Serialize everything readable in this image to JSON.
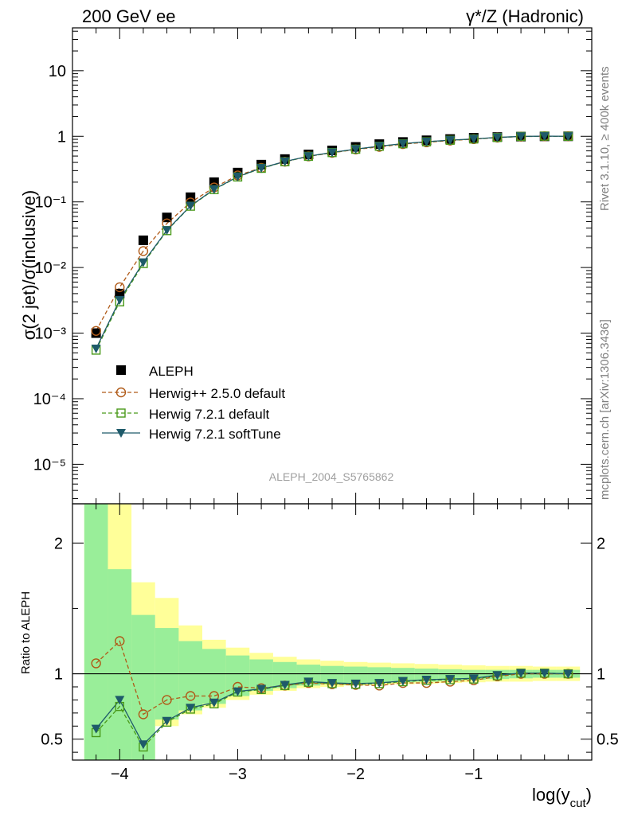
{
  "header": {
    "left": "200 GeV ee",
    "right": "γ*/Z (Hadronic)"
  },
  "side_text": {
    "rivet": "Rivet 3.1.10, ≥ 400k events",
    "source": "mcplots.cern.ch [arXiv:1306.3436]"
  },
  "chart_data": [
    {
      "type": "scatter",
      "panel": "main",
      "title": "ALEPH_2004_S5765862",
      "ylabel": "σ(2 jet)/σ(inclusive)",
      "xlabel": "",
      "yscale": "log",
      "xlim": [
        -4.4,
        -0.0
      ],
      "ylim": [
        2.5e-06,
        45
      ],
      "y_tick_labels": [
        "10⁻⁵",
        "10⁻⁴",
        "10⁻³",
        "10⁻²",
        "10⁻¹",
        "1",
        "10"
      ],
      "x": [
        -4.2,
        -4.0,
        -3.8,
        -3.6,
        -3.4,
        -3.2,
        -3.0,
        -2.8,
        -2.6,
        -2.4,
        -2.2,
        -2.0,
        -1.8,
        -1.6,
        -1.4,
        -1.2,
        -1.0,
        -0.8,
        -0.6,
        -0.4,
        -0.2
      ],
      "series": [
        {
          "name": "ALEPH",
          "color": "#000000",
          "marker": "filled-square",
          "line": "none",
          "values": [
            0.001,
            0.004,
            0.026,
            0.058,
            0.118,
            0.2,
            0.28,
            0.37,
            0.45,
            0.53,
            0.61,
            0.69,
            0.76,
            0.82,
            0.87,
            0.91,
            0.95,
            0.975,
            0.99,
            0.998,
            1.0
          ]
        },
        {
          "name": "Herwig++ 2.5.0 default",
          "color": "#b05a18",
          "marker": "open-circle",
          "line": "dashed",
          "values": [
            0.00108,
            0.005,
            0.0178,
            0.047,
            0.098,
            0.166,
            0.253,
            0.33,
            0.41,
            0.495,
            0.56,
            0.63,
            0.69,
            0.76,
            0.81,
            0.86,
            0.905,
            0.955,
            0.99,
            1.0,
            1.0
          ]
        },
        {
          "name": "Herwig 7.2.1 default",
          "color": "#4a9a1a",
          "marker": "open-square",
          "line": "dashed",
          "values": [
            0.00055,
            0.003,
            0.0115,
            0.0365,
            0.086,
            0.154,
            0.24,
            0.325,
            0.41,
            0.495,
            0.565,
            0.635,
            0.705,
            0.77,
            0.825,
            0.87,
            0.91,
            0.96,
            0.995,
            1.005,
            1.0
          ]
        },
        {
          "name": "Herwig 7.2.1 softTune",
          "color": "#1e5a6a",
          "marker": "filled-triangle-down",
          "line": "solid",
          "values": [
            0.00058,
            0.0032,
            0.012,
            0.037,
            0.087,
            0.156,
            0.242,
            0.328,
            0.413,
            0.497,
            0.568,
            0.637,
            0.708,
            0.773,
            0.828,
            0.873,
            0.913,
            0.962,
            0.996,
            1.005,
            1.0
          ]
        }
      ]
    },
    {
      "type": "line",
      "panel": "ratio",
      "ylabel": "Ratio to ALEPH",
      "xlabel": "log(y_cut)",
      "xlim": [
        -4.4,
        -0.0
      ],
      "ylim": [
        0.34,
        2.3
      ],
      "x_tick_labels": [
        "−4",
        "−3",
        "−2",
        "−1"
      ],
      "y_tick_labels": [
        "0.5",
        "1",
        "2"
      ],
      "x": [
        -4.2,
        -4.0,
        -3.8,
        -3.6,
        -3.4,
        -3.2,
        -3.0,
        -2.8,
        -2.6,
        -2.4,
        -2.2,
        -2.0,
        -1.8,
        -1.6,
        -1.4,
        -1.2,
        -1.0,
        -0.8,
        -0.6,
        -0.4,
        -0.2
      ],
      "bin_edges": [
        -4.3,
        -4.1,
        -3.9,
        -3.7,
        -3.5,
        -3.3,
        -3.1,
        -2.9,
        -2.7,
        -2.5,
        -2.3,
        -2.1,
        -1.9,
        -1.7,
        -1.5,
        -1.3,
        -1.1,
        -0.9,
        -0.7,
        -0.5,
        -0.3,
        -0.1
      ],
      "band_green": [
        [
          0.34,
          2.3
        ],
        [
          0.34,
          1.8
        ],
        [
          0.34,
          1.45
        ],
        [
          0.65,
          1.35
        ],
        [
          0.72,
          1.25
        ],
        [
          0.77,
          1.19
        ],
        [
          0.83,
          1.14
        ],
        [
          0.87,
          1.11
        ],
        [
          0.89,
          1.09
        ],
        [
          0.91,
          1.07
        ],
        [
          0.92,
          1.06
        ],
        [
          0.925,
          1.055
        ],
        [
          0.93,
          1.05
        ],
        [
          0.935,
          1.045
        ],
        [
          0.94,
          1.04
        ],
        [
          0.945,
          1.035
        ],
        [
          0.955,
          1.03
        ],
        [
          0.96,
          1.03
        ],
        [
          0.965,
          1.03
        ],
        [
          0.97,
          1.03
        ],
        [
          0.97,
          1.03
        ]
      ],
      "band_yellow": [
        [
          0.34,
          2.3
        ],
        [
          0.34,
          2.3
        ],
        [
          0.34,
          1.7
        ],
        [
          0.6,
          1.58
        ],
        [
          0.69,
          1.37
        ],
        [
          0.74,
          1.26
        ],
        [
          0.8,
          1.2
        ],
        [
          0.84,
          1.16
        ],
        [
          0.87,
          1.13
        ],
        [
          0.89,
          1.11
        ],
        [
          0.9,
          1.1
        ],
        [
          0.91,
          1.09
        ],
        [
          0.915,
          1.085
        ],
        [
          0.92,
          1.08
        ],
        [
          0.925,
          1.075
        ],
        [
          0.93,
          1.07
        ],
        [
          0.935,
          1.065
        ],
        [
          0.94,
          1.06
        ],
        [
          0.94,
          1.06
        ],
        [
          0.945,
          1.055
        ],
        [
          0.945,
          1.055
        ]
      ],
      "series": [
        {
          "name": "Herwig++ 2.5.0 default",
          "color": "#b05a18",
          "marker": "open-circle",
          "line": "dashed",
          "values": [
            1.08,
            1.25,
            0.69,
            0.8,
            0.83,
            0.83,
            0.9,
            0.89,
            0.91,
            0.93,
            0.92,
            0.915,
            0.91,
            0.93,
            0.93,
            0.94,
            0.95,
            0.98,
            1.0,
            1.0,
            1.0
          ]
        },
        {
          "name": "Herwig 7.2.1 default",
          "color": "#4a9a1a",
          "marker": "open-square",
          "line": "dashed",
          "values": [
            0.55,
            0.75,
            0.44,
            0.63,
            0.73,
            0.77,
            0.86,
            0.88,
            0.91,
            0.935,
            0.925,
            0.92,
            0.925,
            0.94,
            0.95,
            0.955,
            0.96,
            0.985,
            1.005,
            1.005,
            1.0
          ]
        },
        {
          "name": "Herwig 7.2.1 softTune",
          "color": "#1e5a6a",
          "marker": "filled-triangle-down",
          "line": "solid",
          "values": [
            0.58,
            0.8,
            0.46,
            0.64,
            0.74,
            0.78,
            0.865,
            0.885,
            0.915,
            0.94,
            0.93,
            0.925,
            0.93,
            0.945,
            0.955,
            0.96,
            0.965,
            0.99,
            1.005,
            1.005,
            1.0
          ]
        }
      ]
    }
  ]
}
